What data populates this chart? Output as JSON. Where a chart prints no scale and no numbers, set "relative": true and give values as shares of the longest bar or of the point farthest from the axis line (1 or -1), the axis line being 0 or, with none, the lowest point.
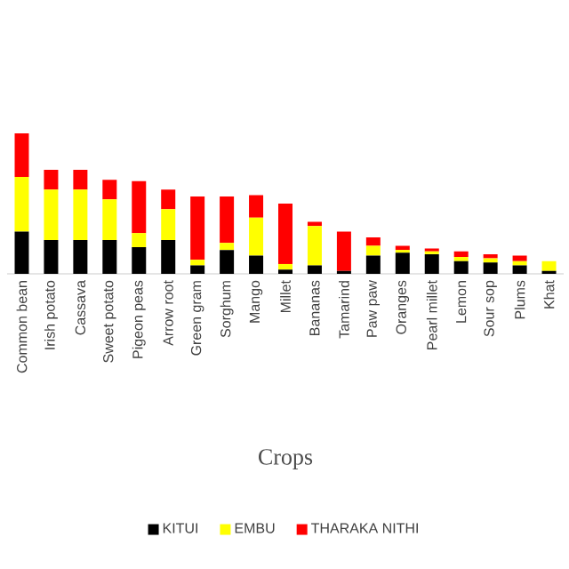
{
  "chart_data": {
    "type": "bar",
    "stacked": true,
    "relative": true,
    "xlabel": "Crops",
    "legend": "bottom",
    "categories": [
      "Common bean",
      "Irish potato",
      "Cassava",
      "Sweet potato",
      "Pigeon peas",
      "Arrow root",
      "Green gram",
      "Sorghum",
      "Mango",
      "Millet",
      "Bananas",
      "Tamarind",
      "Paw paw",
      "Oranges",
      "Pearl millet",
      "Lemon",
      "Sour sop",
      "Plums",
      "Khat"
    ],
    "series": [
      {
        "name": "KITUI",
        "color": "#000000",
        "values": [
          0.3,
          0.24,
          0.24,
          0.24,
          0.19,
          0.24,
          0.06,
          0.17,
          0.13,
          0.03,
          0.06,
          0.02,
          0.13,
          0.15,
          0.14,
          0.09,
          0.08,
          0.06,
          0.02
        ]
      },
      {
        "name": "EMBU",
        "color": "#ffff00",
        "values": [
          0.39,
          0.36,
          0.36,
          0.29,
          0.1,
          0.22,
          0.04,
          0.05,
          0.27,
          0.04,
          0.28,
          0,
          0.07,
          0.02,
          0.02,
          0.03,
          0.03,
          0.03,
          0.07
        ]
      },
      {
        "name": "THARAKA NITHI",
        "color": "#ff0000",
        "values": [
          0.31,
          0.14,
          0.14,
          0.14,
          0.37,
          0.14,
          0.45,
          0.33,
          0.16,
          0.43,
          0.03,
          0.28,
          0.06,
          0.03,
          0.02,
          0.04,
          0.03,
          0.04,
          0
        ]
      }
    ]
  }
}
